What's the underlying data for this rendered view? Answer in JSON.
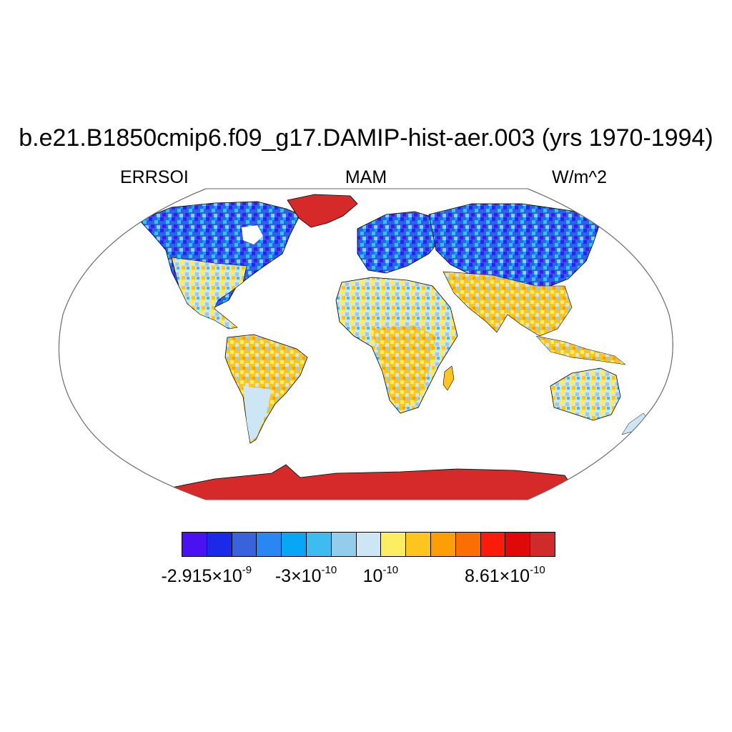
{
  "title": "b.e21.B1850cmip6.f09_g17.DAMIP-hist-aer.003 (yrs 1970-1994)",
  "subtitle_left": "ERRSOI",
  "subtitle_center": "MAM",
  "subtitle_right": "W/m^2",
  "colors": {
    "background": "#ffffff",
    "ocean": "#ffffff",
    "antarctica": "#d62a2a",
    "greenland": "#d62a2a",
    "border": "#000000"
  },
  "colorbar": {
    "colors": [
      "#4a12f0",
      "#1a2ae8",
      "#3a62dc",
      "#2a86f2",
      "#0aa6f6",
      "#3ebcf2",
      "#94cdec",
      "#cde6f6",
      "#fded62",
      "#fec420",
      "#fd9e08",
      "#fb6e04",
      "#f91c0a",
      "#e00808",
      "#d02a2a"
    ],
    "labels": [
      {
        "mantissa": "-2.915",
        "exp": "-9",
        "box_index": 1
      },
      {
        "mantissa": "-3",
        "exp": "-10",
        "box_index": 5
      },
      {
        "mantissa": "",
        "exp": "-10",
        "box_index": 8
      },
      {
        "mantissa": "8.61",
        "exp": "-10",
        "box_index": 13
      }
    ]
  }
}
